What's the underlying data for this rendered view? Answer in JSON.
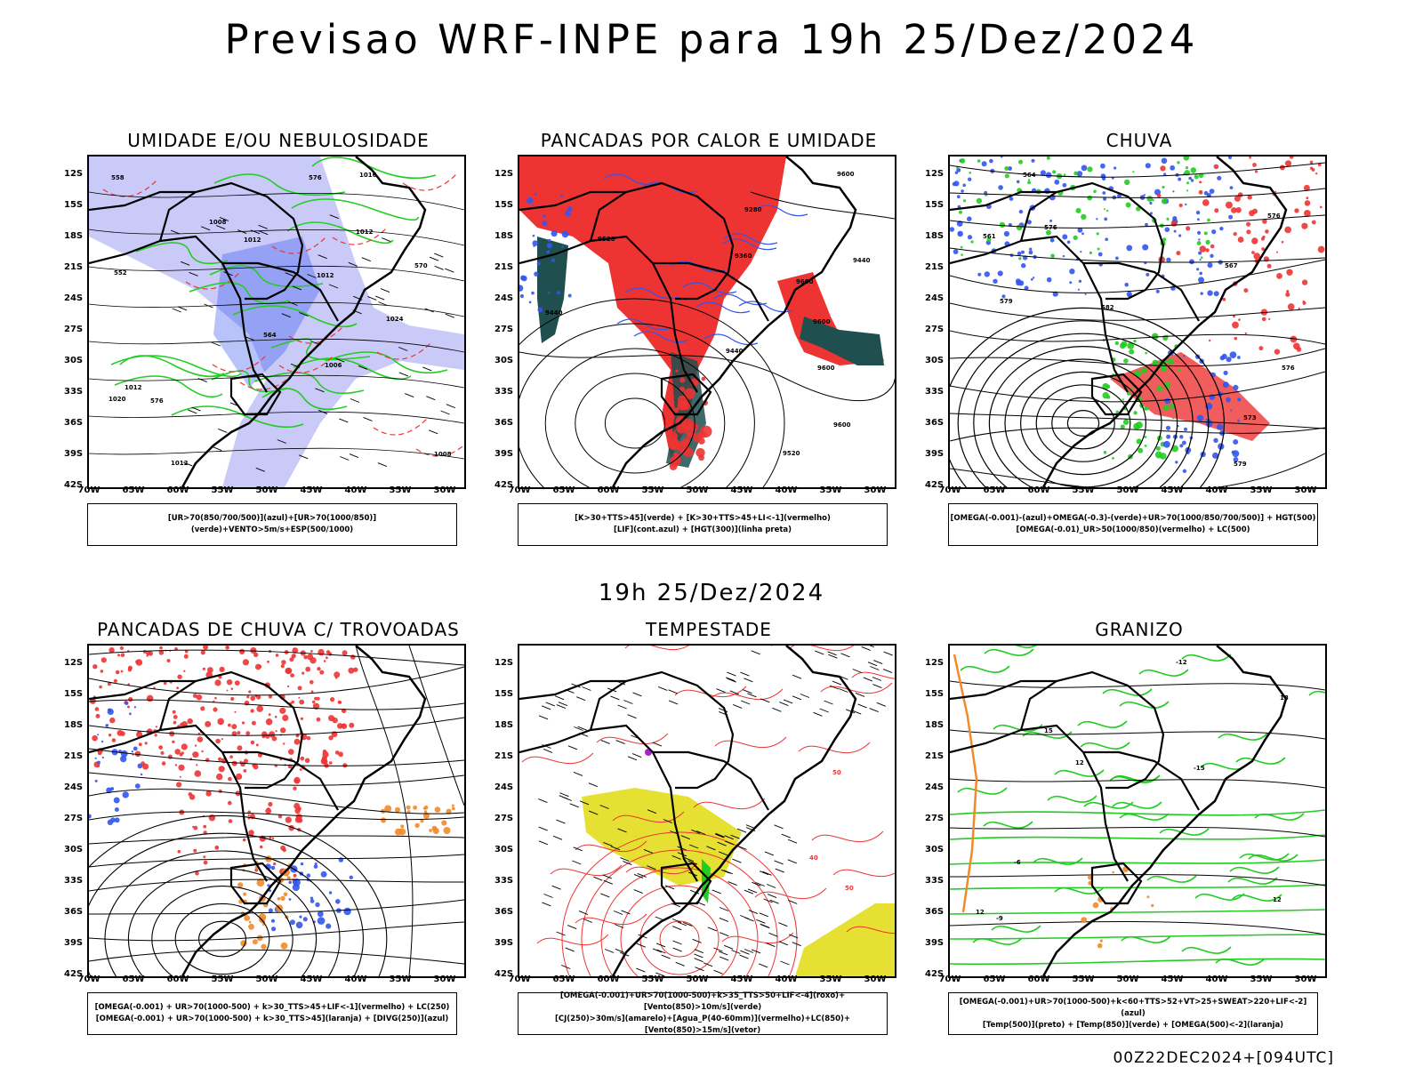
{
  "header": {
    "title": "Previsao WRF-INPE  para 19h 25/Dez/2024"
  },
  "middle": {
    "subtitle": "19h 25/Dez/2024"
  },
  "footer": {
    "run": "00Z22DEC2024+[094UTC]"
  },
  "axes": {
    "lat": [
      "12S",
      "15S",
      "18S",
      "21S",
      "24S",
      "27S",
      "30S",
      "33S",
      "36S",
      "39S",
      "42S"
    ],
    "lon": [
      "70W",
      "65W",
      "60W",
      "55W",
      "50W",
      "45W",
      "40W",
      "35W",
      "30W"
    ]
  },
  "panels": [
    {
      "title": "UMIDADE E/OU NEBULOSIDADE",
      "legend": [
        "[UR>70(850/700/500)](azul)+[UR>70(1000/850)](verde)+VENTO>5m/s+ESP(500/1000)"
      ],
      "labels": [
        "1012",
        "1008",
        "1012",
        "1008",
        "1006",
        "1012",
        "1012",
        "1016",
        "1020",
        "1024",
        "1012",
        "576",
        "570",
        "576",
        "564",
        "558",
        "552"
      ]
    },
    {
      "title": "PANCADAS POR CALOR E UMIDADE",
      "legend": [
        "[K>30+TTS>45](verde) + [K>30+TTS>45+LI<-1](vermelho)",
        "[LIF](cont.azul) + [HGT(300)](linha preta)"
      ],
      "labels": [
        "9600",
        "9520",
        "9600",
        "9600",
        "9600",
        "9520",
        "9440",
        "9360",
        "9280",
        "9440",
        "9440",
        "9600"
      ]
    },
    {
      "title": "CHUVA",
      "legend": [
        "[OMEGA(-0.001)-(azul)+OMEGA(-0.3)-(verde)+UR>70(1000/850/700/500)] + HGT(500)",
        "[OMEGA(-0.01)_UR>50(1000/850)(vermelho) + LC(500)"
      ],
      "labels": [
        "576",
        "576",
        "579",
        "573",
        "567",
        "564",
        "561",
        "579",
        "582",
        "576"
      ]
    },
    {
      "title": "PANCADAS DE CHUVA C/ TROVOADAS",
      "legend": [
        "[OMEGA(-0.001) + UR>70(1000-500) + k>30_TTS>45+LIF<-1](vermelho) + LC(250)",
        "[OMEGA(-0.001) + UR>70(1000-500) + k>30_TTS>45](laranja) + [DIVG(250)](azul)"
      ],
      "labels": []
    },
    {
      "title": "TEMPESTADE",
      "legend": [
        "[OMEGA(-0.001)+UR>70(1000-500)+k>35_TTS>50+LIF<-4](roxo)+[Vento(850)>10m/s](verde)",
        "[CJ(250)>30m/s](amarelo)+[Agua_P(40-60mm)](vermelho)+LC(850)+[Vento(850)>15m/s](vetor)"
      ],
      "labels": [
        "50",
        "50",
        "40"
      ]
    },
    {
      "title": "GRANIZO",
      "legend": [
        "[OMEGA(-0.001)+UR>70(1000-500)+k<60+TTS>52+VT>25+SWEAT>220+LIF<-2](azul)",
        "[Temp(500)](preto) + [Temp(850)](verde) + [OMEGA(500)<-2](laranja)"
      ],
      "labels": [
        "-6",
        "-9",
        "12",
        "12",
        "-12",
        "-15",
        "15",
        "18",
        "12"
      ]
    }
  ],
  "colors": {
    "blue": "#3355ee",
    "lightblue": "#b4b4f5",
    "green": "#22cc22",
    "red": "#ee3333",
    "darkteal": "#1f4f4f",
    "yellow": "#e6e033",
    "orange": "#f08a2a",
    "purple": "#aa22cc"
  }
}
